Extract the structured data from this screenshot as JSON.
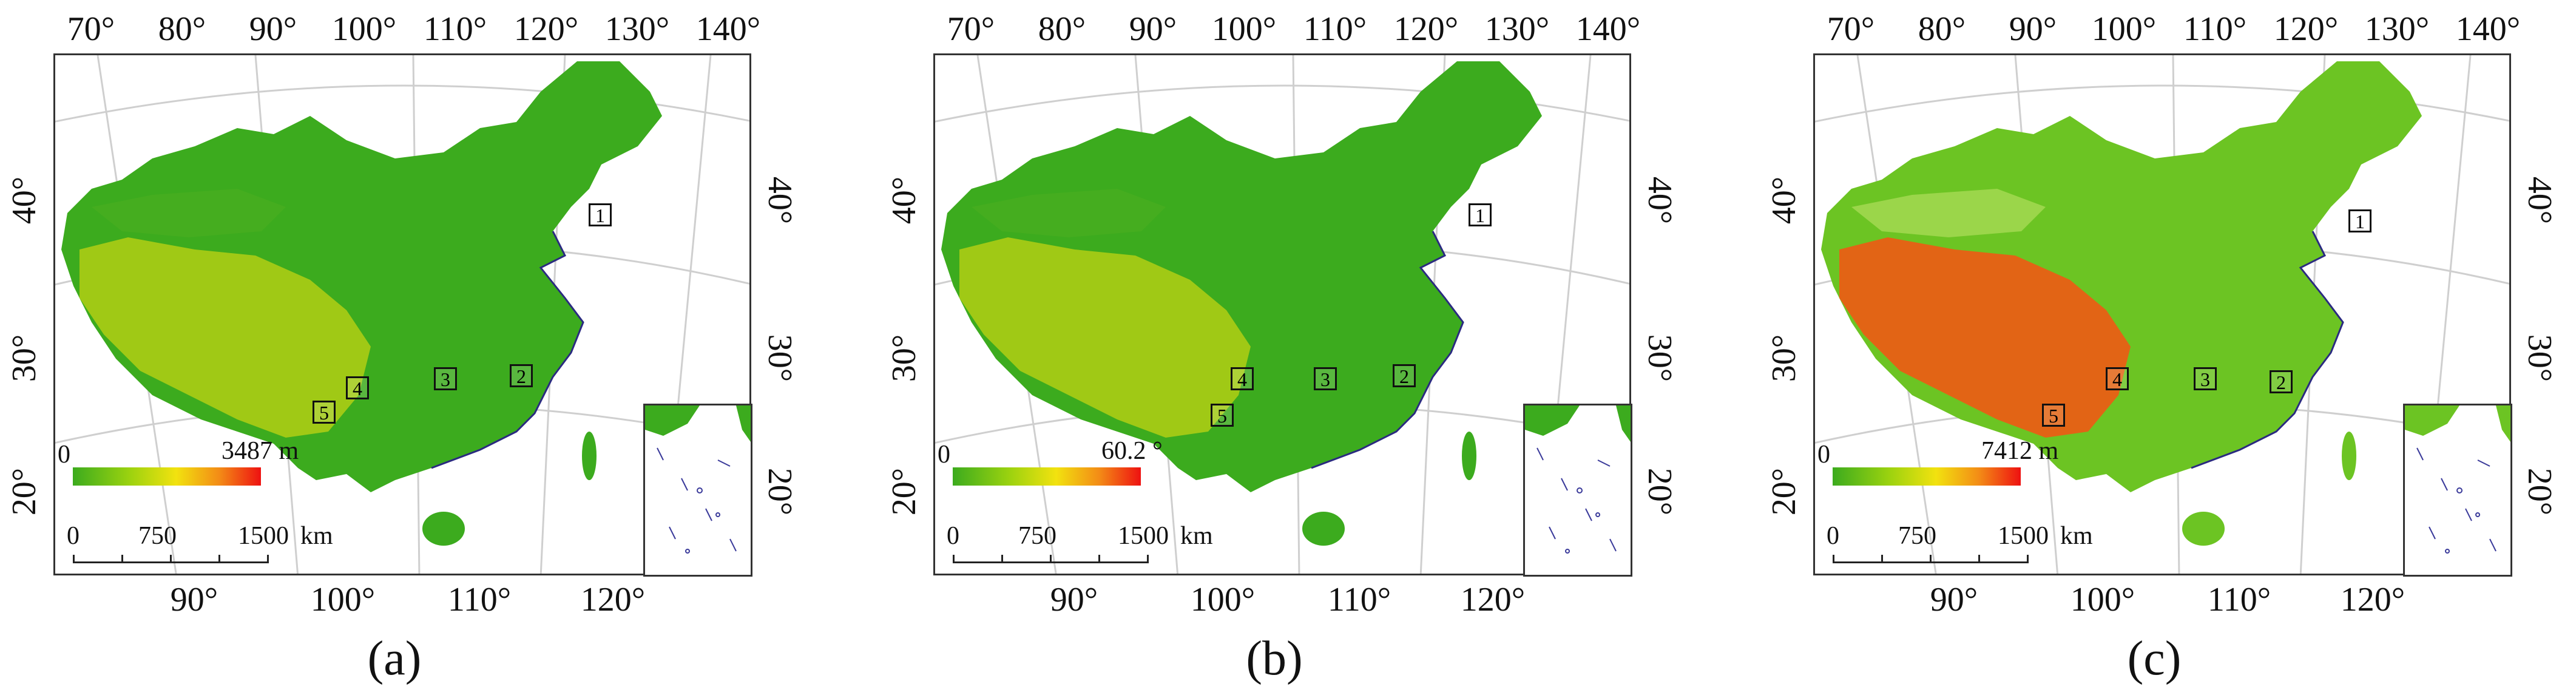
{
  "graticule": {
    "top_lon": [
      "70°",
      "80°",
      "90°",
      "100°",
      "110°",
      "120°",
      "130°",
      "140°"
    ],
    "bottom_lon": [
      "90°",
      "100°",
      "110°",
      "120°"
    ],
    "lat_left": [
      "40°",
      "30°",
      "20°"
    ],
    "lat_right": [
      "40°",
      "30°",
      "20°"
    ]
  },
  "scale_bar": {
    "labels": [
      "0",
      "750",
      "1500"
    ],
    "unit": "km"
  },
  "site_labels": [
    "1",
    "2",
    "3",
    "4",
    "5"
  ],
  "panels": [
    {
      "letter": "(a)",
      "legend_min": "0",
      "legend_max": "3487 m",
      "colors": {
        "low": "#3cab1e",
        "mid": "#f2e20f",
        "high": "#ee1111"
      }
    },
    {
      "letter": "(b)",
      "legend_min": "0",
      "legend_max": "60.2 °",
      "colors": {
        "low": "#3cab1e",
        "mid": "#f2e20f",
        "high": "#ee1111"
      }
    },
    {
      "letter": "(c)",
      "legend_min": "0",
      "legend_max": "7412 m",
      "colors": {
        "low": "#3cab1e",
        "mid": "#f2e20f",
        "high": "#ee1111"
      }
    }
  ]
}
